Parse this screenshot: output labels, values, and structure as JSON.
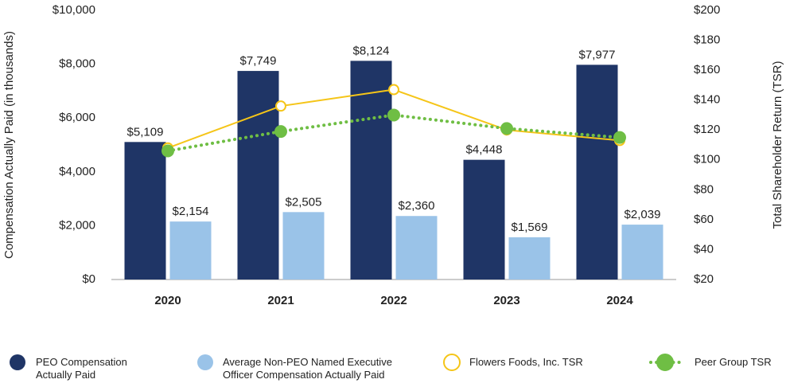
{
  "chart_data": {
    "type": "bar",
    "y_label": "Compensation Actually Paid (in thousands)",
    "y2_label": "Total Shareholder Return (TSR)",
    "categories": [
      "2020",
      "2021",
      "2022",
      "2023",
      "2024"
    ],
    "ylim": [
      0,
      10000
    ],
    "yticks": [
      {
        "value": 0,
        "label": "$0"
      },
      {
        "value": 2000,
        "label": "$2,000"
      },
      {
        "value": 4000,
        "label": "$4,000"
      },
      {
        "value": 6000,
        "label": "$6,000"
      },
      {
        "value": 8000,
        "label": "$8,000"
      },
      {
        "value": 10000,
        "label": "$10,000"
      }
    ],
    "y2lim": [
      20,
      200
    ],
    "y2ticks": [
      {
        "value": 20,
        "label": "$20"
      },
      {
        "value": 40,
        "label": "$40"
      },
      {
        "value": 60,
        "label": "$60"
      },
      {
        "value": 80,
        "label": "$80"
      },
      {
        "value": 100,
        "label": "$100"
      },
      {
        "value": 120,
        "label": "$120"
      },
      {
        "value": 140,
        "label": "$140"
      },
      {
        "value": 160,
        "label": "$160"
      },
      {
        "value": 180,
        "label": "$180"
      },
      {
        "value": 200,
        "label": "$200"
      }
    ],
    "grid": false,
    "series": [
      {
        "name": "PEO Compensation Actually Paid",
        "type": "bar",
        "color": "#1f3566",
        "values": [
          5109,
          7749,
          8124,
          4448,
          7977
        ],
        "value_labels": [
          "$5,109",
          "$7,749",
          "$8,124",
          "$4,448",
          "$7,977"
        ]
      },
      {
        "name": "Average Non-PEO Named Executive Officer Compensation Actually Paid",
        "type": "bar",
        "color": "#9ac3e8",
        "values": [
          2154,
          2505,
          2360,
          1569,
          2039
        ],
        "value_labels": [
          "$2,154",
          "$2,505",
          "$2,360",
          "$1,569",
          "$2,039"
        ]
      },
      {
        "name": "Flowers Foods, Inc. TSR",
        "type": "line",
        "axis": "y2",
        "color": "#f5c518",
        "marker": "hollow",
        "line_style": "solid",
        "values": [
          108,
          136,
          147,
          120,
          113
        ]
      },
      {
        "name": "Peer Group TSR",
        "type": "line",
        "axis": "y2",
        "color": "#6fbe44",
        "marker": "filled",
        "line_style": "dotted",
        "values": [
          106,
          119,
          130,
          121,
          115
        ]
      }
    ]
  }
}
